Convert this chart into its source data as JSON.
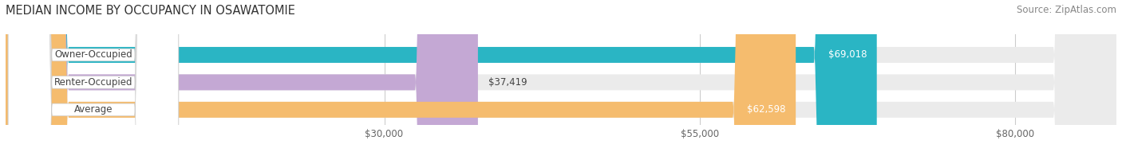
{
  "title": "MEDIAN INCOME BY OCCUPANCY IN OSAWATOMIE",
  "source": "Source: ZipAtlas.com",
  "categories": [
    "Owner-Occupied",
    "Renter-Occupied",
    "Average"
  ],
  "values": [
    69018,
    37419,
    62598
  ],
  "bar_colors": [
    "#2ab5c4",
    "#c4a8d4",
    "#f5bc6e"
  ],
  "bar_bg_color": "#ebebeb",
  "value_labels": [
    "$69,018",
    "$37,419",
    "$62,598"
  ],
  "x_ticks": [
    30000,
    55000,
    80000
  ],
  "x_tick_labels": [
    "$30,000",
    "$55,000",
    "$80,000"
  ],
  "x_min": 0,
  "x_max": 88000,
  "title_fontsize": 10.5,
  "source_fontsize": 8.5,
  "label_fontsize": 8.5,
  "bar_label_fontsize": 8.5,
  "background_color": "#ffffff",
  "pill_bg": "#ffffff",
  "pill_text_color": "#444444",
  "value_text_color": "#444444"
}
